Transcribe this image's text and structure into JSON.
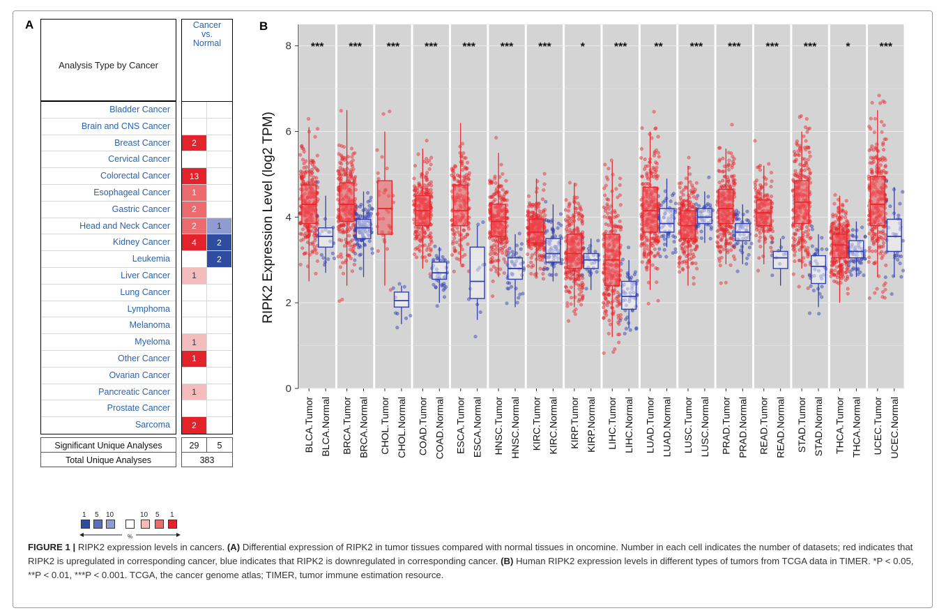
{
  "panel_a": {
    "letter": "A",
    "header_title": "Analysis Type by Cancer",
    "header_col_lines": [
      "Cancer",
      "vs.",
      "Normal"
    ],
    "colors": {
      "red_strong": "#e3232c",
      "red_medium": "#eb6b6e",
      "red_light": "#f5bcbd",
      "blue_strong": "#2f4da0",
      "blue_light": "#8f9bd1",
      "link_blue": "#2a63ad"
    },
    "rows": [
      {
        "name": "Bladder Cancer",
        "up": "",
        "up_level": 0,
        "down": "",
        "down_level": 0
      },
      {
        "name": "Brain and CNS Cancer",
        "up": "",
        "up_level": 0,
        "down": "",
        "down_level": 0
      },
      {
        "name": "Breast Cancer",
        "up": "2",
        "up_level": 3,
        "down": "",
        "down_level": 0
      },
      {
        "name": "Cervical Cancer",
        "up": "",
        "up_level": 0,
        "down": "",
        "down_level": 0
      },
      {
        "name": "Colorectal Cancer",
        "up": "13",
        "up_level": 3,
        "down": "",
        "down_level": 0
      },
      {
        "name": "Esophageal Cancer",
        "up": "1",
        "up_level": 2,
        "down": "",
        "down_level": 0
      },
      {
        "name": "Gastric Cancer",
        "up": "2",
        "up_level": 2,
        "down": "",
        "down_level": 0
      },
      {
        "name": "Head and Neck Cancer",
        "up": "2",
        "up_level": 2,
        "down": "1",
        "down_level": 1
      },
      {
        "name": "Kidney Cancer",
        "up": "4",
        "up_level": 3,
        "down": "2",
        "down_level": 3
      },
      {
        "name": "Leukemia",
        "up": "",
        "up_level": 0,
        "down": "2",
        "down_level": 3
      },
      {
        "name": "Liver Cancer",
        "up": "1",
        "up_level": 1,
        "down": "",
        "down_level": 0
      },
      {
        "name": "Lung Cancer",
        "up": "",
        "up_level": 0,
        "down": "",
        "down_level": 0
      },
      {
        "name": "Lymphoma",
        "up": "",
        "up_level": 0,
        "down": "",
        "down_level": 0
      },
      {
        "name": "Melanoma",
        "up": "",
        "up_level": 0,
        "down": "",
        "down_level": 0
      },
      {
        "name": "Myeloma",
        "up": "1",
        "up_level": 1,
        "down": "",
        "down_level": 0
      },
      {
        "name": "Other Cancer",
        "up": "1",
        "up_level": 3,
        "down": "",
        "down_level": 0
      },
      {
        "name": "Ovarian Cancer",
        "up": "",
        "up_level": 0,
        "down": "",
        "down_level": 0
      },
      {
        "name": "Pancreatic Cancer",
        "up": "1",
        "up_level": 1,
        "down": "",
        "down_level": 0
      },
      {
        "name": "Prostate Cancer",
        "up": "",
        "up_level": 0,
        "down": "",
        "down_level": 0
      },
      {
        "name": "Sarcoma",
        "up": "2",
        "up_level": 3,
        "down": "",
        "down_level": 0
      }
    ],
    "significant_label": "Significant Unique Analyses",
    "significant_up": "29",
    "significant_down": "5",
    "total_label": "Total Unique Analyses",
    "total_value": "383",
    "legend_numbers": [
      "1",
      "5",
      "10",
      "10",
      "5",
      "1"
    ],
    "legend_unit": "%"
  },
  "chart_data": {
    "type": "box",
    "panel_letter": "B",
    "ylabel": "RIPK2 Expression Level (log2 TPM)",
    "ylim": [
      0,
      8.5
    ],
    "yticks": [
      0,
      2,
      4,
      6,
      8
    ],
    "grid": true,
    "tumor_color": "#e8262c",
    "normal_color": "#2f3fb3",
    "shade_color": "#d4d4d4",
    "groups": [
      {
        "code": "BLCA",
        "sig": "***",
        "tumor": {
          "label": "BLCA.Tumor",
          "min": 2.5,
          "q1": 3.85,
          "median": 4.3,
          "q3": 4.75,
          "max": 6.1,
          "n": 400
        },
        "normal": {
          "label": "BLCA.Normal",
          "min": 2.7,
          "q1": 3.3,
          "median": 3.55,
          "q3": 3.75,
          "max": 4.5,
          "n": 19
        }
      },
      {
        "code": "BRCA",
        "sig": "***",
        "tumor": {
          "label": "BRCA.Tumor",
          "min": 2.4,
          "q1": 3.9,
          "median": 4.3,
          "q3": 4.8,
          "max": 6.5,
          "n": 1100
        },
        "normal": {
          "label": "BRCA.Normal",
          "min": 2.6,
          "q1": 3.5,
          "median": 3.75,
          "q3": 3.95,
          "max": 4.6,
          "n": 112
        }
      },
      {
        "code": "CHOL",
        "sig": "***",
        "tumor": {
          "label": "CHOL.Tumor",
          "min": 2.4,
          "q1": 3.6,
          "median": 4.2,
          "q3": 4.85,
          "max": 6.0,
          "n": 36
        },
        "normal": {
          "label": "CHOL.Normal",
          "min": 1.5,
          "q1": 1.9,
          "median": 2.05,
          "q3": 2.25,
          "max": 2.4,
          "n": 9
        }
      },
      {
        "code": "COAD",
        "sig": "***",
        "tumor": {
          "label": "COAD.Tumor",
          "min": 2.8,
          "q1": 3.8,
          "median": 4.15,
          "q3": 4.5,
          "max": 5.6,
          "n": 460
        },
        "normal": {
          "label": "COAD.Normal",
          "min": 2.0,
          "q1": 2.55,
          "median": 2.7,
          "q3": 2.95,
          "max": 3.3,
          "n": 41
        }
      },
      {
        "code": "ESCA",
        "sig": "***",
        "tumor": {
          "label": "ESCA.Tumor",
          "min": 2.9,
          "q1": 3.8,
          "median": 4.15,
          "q3": 4.75,
          "max": 6.2,
          "n": 185
        },
        "normal": {
          "label": "ESCA.Normal",
          "min": 1.6,
          "q1": 2.1,
          "median": 2.5,
          "q3": 3.3,
          "max": 3.8,
          "n": 11
        }
      },
      {
        "code": "HNSC",
        "sig": "***",
        "tumor": {
          "label": "HNSC.Tumor",
          "min": 2.6,
          "q1": 3.55,
          "median": 3.9,
          "q3": 4.3,
          "max": 5.5,
          "n": 520
        },
        "normal": {
          "label": "HNSC.Normal",
          "min": 1.9,
          "q1": 2.55,
          "median": 2.8,
          "q3": 3.05,
          "max": 3.6,
          "n": 44
        }
      },
      {
        "code": "KIRC",
        "sig": "***",
        "tumor": {
          "label": "KIRC.Tumor",
          "min": 2.6,
          "q1": 3.4,
          "median": 3.65,
          "q3": 3.95,
          "max": 4.9,
          "n": 533
        },
        "normal": {
          "label": "KIRC.Normal",
          "min": 2.5,
          "q1": 2.95,
          "median": 3.15,
          "q3": 3.5,
          "max": 4.3,
          "n": 72
        }
      },
      {
        "code": "KIRP",
        "sig": "*",
        "tumor": {
          "label": "KIRP.Tumor",
          "min": 1.9,
          "q1": 2.8,
          "median": 3.15,
          "q3": 3.6,
          "max": 4.8,
          "n": 290
        },
        "normal": {
          "label": "KIRP.Normal",
          "min": 2.3,
          "q1": 2.8,
          "median": 3.0,
          "q3": 3.15,
          "max": 3.5,
          "n": 32
        }
      },
      {
        "code": "LIHC",
        "sig": "***",
        "tumor": {
          "label": "LIHC.Tumor",
          "min": 1.2,
          "q1": 2.4,
          "median": 3.0,
          "q3": 3.6,
          "max": 5.3,
          "n": 371
        },
        "normal": {
          "label": "LIHC.Normal",
          "min": 1.4,
          "q1": 1.85,
          "median": 2.15,
          "q3": 2.5,
          "max": 3.0,
          "n": 50
        }
      },
      {
        "code": "LUAD",
        "sig": "**",
        "tumor": {
          "label": "LUAD.Tumor",
          "min": 2.3,
          "q1": 3.65,
          "median": 4.15,
          "q3": 4.7,
          "max": 6.0,
          "n": 515
        },
        "normal": {
          "label": "LUAD.Normal",
          "min": 3.3,
          "q1": 3.65,
          "median": 3.85,
          "q3": 4.2,
          "max": 4.9,
          "n": 59
        }
      },
      {
        "code": "LUSC",
        "sig": "***",
        "tumor": {
          "label": "LUSC.Tumor",
          "min": 2.4,
          "q1": 3.5,
          "median": 3.8,
          "q3": 4.15,
          "max": 5.2,
          "n": 501
        },
        "normal": {
          "label": "LUSC.Normal",
          "min": 3.4,
          "q1": 3.85,
          "median": 4.0,
          "q3": 4.2,
          "max": 4.6,
          "n": 51
        }
      },
      {
        "code": "PRAD",
        "sig": "***",
        "tumor": {
          "label": "PRAD.Tumor",
          "min": 2.9,
          "q1": 3.85,
          "median": 4.2,
          "q3": 4.65,
          "max": 5.6,
          "n": 497
        },
        "normal": {
          "label": "PRAD.Normal",
          "min": 2.9,
          "q1": 3.45,
          "median": 3.65,
          "q3": 3.85,
          "max": 4.3,
          "n": 52
        }
      },
      {
        "code": "READ",
        "sig": "***",
        "tumor": {
          "label": "READ.Tumor",
          "min": 2.9,
          "q1": 3.8,
          "median": 4.1,
          "q3": 4.4,
          "max": 5.2,
          "n": 166
        },
        "normal": {
          "label": "READ.Normal",
          "min": 2.4,
          "q1": 2.8,
          "median": 3.05,
          "q3": 3.2,
          "max": 3.5,
          "n": 10
        }
      },
      {
        "code": "STAD",
        "sig": "***",
        "tumor": {
          "label": "STAD.Tumor",
          "min": 2.8,
          "q1": 3.85,
          "median": 4.35,
          "q3": 4.85,
          "max": 6.0,
          "n": 415
        },
        "normal": {
          "label": "STAD.Normal",
          "min": 1.9,
          "q1": 2.45,
          "median": 2.85,
          "q3": 3.1,
          "max": 3.6,
          "n": 35
        }
      },
      {
        "code": "THCA",
        "sig": "*",
        "tumor": {
          "label": "THCA.Tumor",
          "min": 2.0,
          "q1": 3.05,
          "median": 3.35,
          "q3": 3.6,
          "max": 4.5,
          "n": 509
        },
        "normal": {
          "label": "THCA.Normal",
          "min": 2.6,
          "q1": 3.05,
          "median": 3.2,
          "q3": 3.45,
          "max": 3.9,
          "n": 59
        }
      },
      {
        "code": "UCEC",
        "sig": "***",
        "tumor": {
          "label": "UCEC.Tumor",
          "min": 2.6,
          "q1": 3.8,
          "median": 4.3,
          "q3": 4.95,
          "max": 6.5,
          "n": 545
        },
        "normal": {
          "label": "UCEC.Normal",
          "min": 2.6,
          "q1": 3.2,
          "median": 3.55,
          "q3": 3.95,
          "max": 4.7,
          "n": 35
        }
      }
    ]
  },
  "caption": {
    "figure_label": "FIGURE 1 |",
    "title": " RIPK2 expression levels in cancers. ",
    "a_label": "(A)",
    "a_text": " Differential expression of RIPK2 in tumor tissues compared with normal tissues in oncomine. Number in each cell indicates the number of datasets; red indicates that RIPK2 is upregulated in corresponding cancer, blue indicates that RIPK2 is downregulated in corresponding cancer. ",
    "b_label": "(B)",
    "b_text": " Human RIPK2 expression levels in different types of tumors from TCGA data in TIMER. *P < 0.05, **P < 0.01, ***P < 0.001. TCGA, the cancer genome atlas; TIMER, tumor immune estimation resource."
  }
}
